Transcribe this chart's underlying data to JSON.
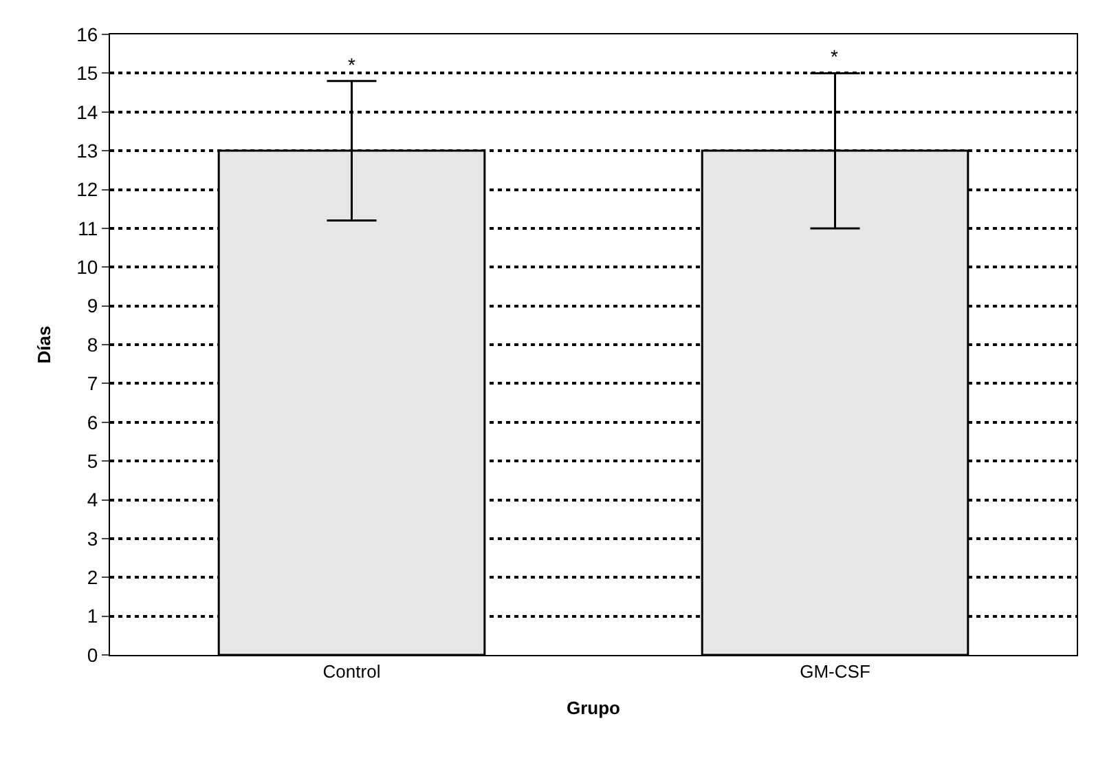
{
  "chart_data": {
    "type": "bar",
    "xlabel": "Grupo",
    "ylabel": "Días",
    "categories": [
      "Control",
      "GM-CSF"
    ],
    "values": [
      13,
      13
    ],
    "errors": [
      1.8,
      2.0
    ],
    "color": "#e6e6e6",
    "ylim": [
      0,
      16
    ],
    "yticks": [
      0,
      1,
      2,
      3,
      4,
      5,
      6,
      7,
      8,
      9,
      10,
      11,
      12,
      13,
      14,
      15,
      16
    ],
    "grid": "y",
    "annotations": [
      "*",
      "*"
    ]
  }
}
